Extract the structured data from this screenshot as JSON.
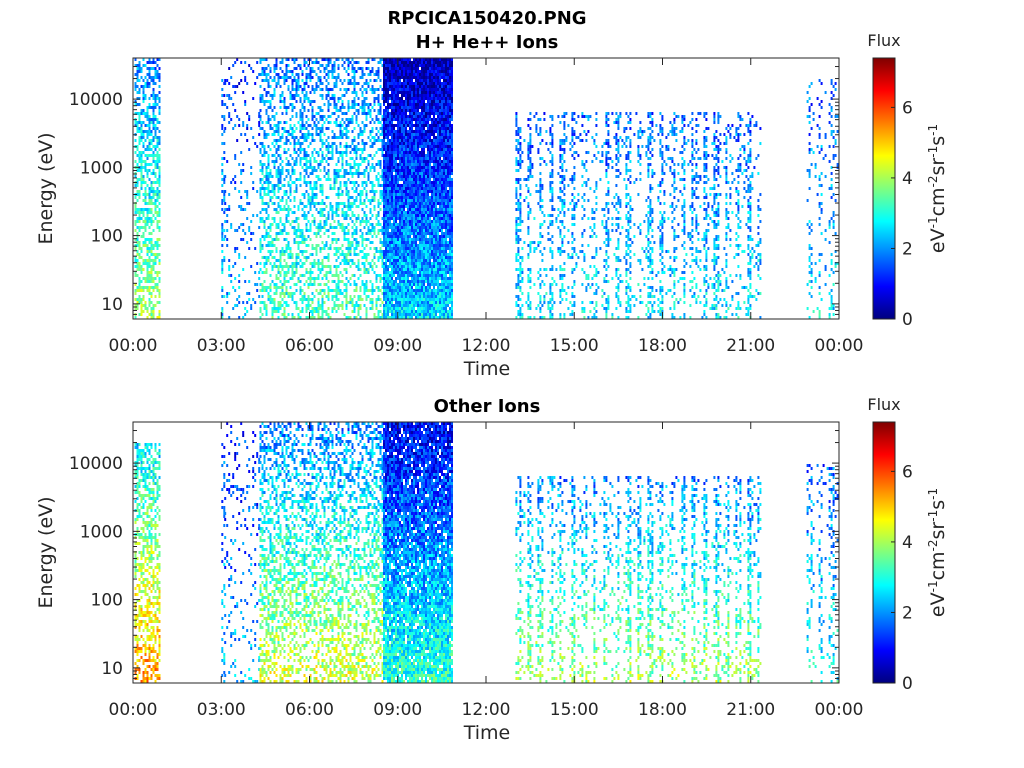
{
  "figure": {
    "title_line1": "RPCICA150420.PNG"
  },
  "chart_data": [
    {
      "type": "heatmap",
      "title": "H+ He++ Ions",
      "xlabel": "Time",
      "ylabel": "Energy (eV)",
      "x_ticks": [
        "00:00",
        "03:00",
        "06:00",
        "09:00",
        "12:00",
        "15:00",
        "18:00",
        "21:00",
        "00:00"
      ],
      "x_range_hours": [
        0,
        24
      ],
      "y_scale": "log",
      "y_range_eV": [
        6,
        40000
      ],
      "y_ticks": [
        "10",
        "100",
        "1000",
        "10000"
      ],
      "colorbar": {
        "label": "Flux",
        "units": "eV-1cm-2sr-1s-1",
        "range": [
          0,
          7.4
        ],
        "ticks": [
          "0",
          "2",
          "4",
          "6"
        ],
        "colormap": "jet"
      },
      "colormap_stops": [
        "#00007f",
        "#0000ff",
        "#007fff",
        "#00ffff",
        "#7fff7f",
        "#ffff00",
        "#ff7f00",
        "#ff0000",
        "#7f0000"
      ],
      "segments": [
        {
          "start": 0.05,
          "end": 0.9,
          "base": 3.8,
          "slope": 0.55,
          "density": 0.55,
          "emax": 4.6
        },
        {
          "start": 3.0,
          "end": 3.1,
          "base": 2.4,
          "slope": 0.3,
          "density": 0.35,
          "emax": 4.3
        },
        {
          "start": 3.1,
          "end": 4.3,
          "base": 2.2,
          "slope": 0.3,
          "density": 0.12,
          "emax": 4.6
        },
        {
          "start": 4.3,
          "end": 8.5,
          "base": 3.2,
          "slope": 0.4,
          "density": 0.45,
          "emax": 4.6
        },
        {
          "start": 8.5,
          "end": 10.85,
          "base": 2.4,
          "slope": 0.55,
          "density": 0.97,
          "emax": 4.6
        },
        {
          "start": 13.0,
          "end": 21.3,
          "base": 2.6,
          "slope": 0.35,
          "density": 0.5,
          "emax": 3.8,
          "striped": true
        },
        {
          "start": 22.9,
          "end": 23.95,
          "base": 2.6,
          "slope": 0.35,
          "density": 0.3,
          "emax": 4.3,
          "striped": true
        }
      ]
    },
    {
      "type": "heatmap",
      "title": "Other Ions",
      "xlabel": "Time",
      "ylabel": "Energy (eV)",
      "x_ticks": [
        "00:00",
        "03:00",
        "06:00",
        "09:00",
        "12:00",
        "15:00",
        "18:00",
        "21:00",
        "00:00"
      ],
      "x_range_hours": [
        0,
        24
      ],
      "y_scale": "log",
      "y_range_eV": [
        6,
        40000
      ],
      "y_ticks": [
        "10",
        "100",
        "1000",
        "10000"
      ],
      "colorbar": {
        "label": "Flux",
        "units": "eV-1cm-2sr-1s-1",
        "range": [
          0,
          7.4
        ],
        "ticks": [
          "0",
          "2",
          "4",
          "6"
        ],
        "colormap": "jet"
      },
      "colormap_stops": [
        "#00007f",
        "#0000ff",
        "#007fff",
        "#00ffff",
        "#7fff7f",
        "#ffff00",
        "#ff7f00",
        "#ff0000",
        "#7f0000"
      ],
      "segments": [
        {
          "start": 0.05,
          "end": 0.9,
          "base": 5.2,
          "slope": 0.8,
          "density": 0.55,
          "emax": 4.3
        },
        {
          "start": 3.0,
          "end": 3.1,
          "base": 2.4,
          "slope": 0.3,
          "density": 0.3,
          "emax": 4.3
        },
        {
          "start": 3.1,
          "end": 4.3,
          "base": 2.2,
          "slope": 0.3,
          "density": 0.12,
          "emax": 4.6
        },
        {
          "start": 4.3,
          "end": 8.5,
          "base": 4.2,
          "slope": 0.65,
          "density": 0.45,
          "emax": 4.6
        },
        {
          "start": 8.5,
          "end": 10.85,
          "base": 3.0,
          "slope": 0.6,
          "density": 0.92,
          "emax": 4.6
        },
        {
          "start": 13.0,
          "end": 21.3,
          "base": 3.8,
          "slope": 0.7,
          "density": 0.5,
          "emax": 3.8,
          "striped": true
        },
        {
          "start": 22.9,
          "end": 23.95,
          "base": 2.8,
          "slope": 0.4,
          "density": 0.3,
          "emax": 4.0,
          "striped": true
        }
      ]
    }
  ]
}
